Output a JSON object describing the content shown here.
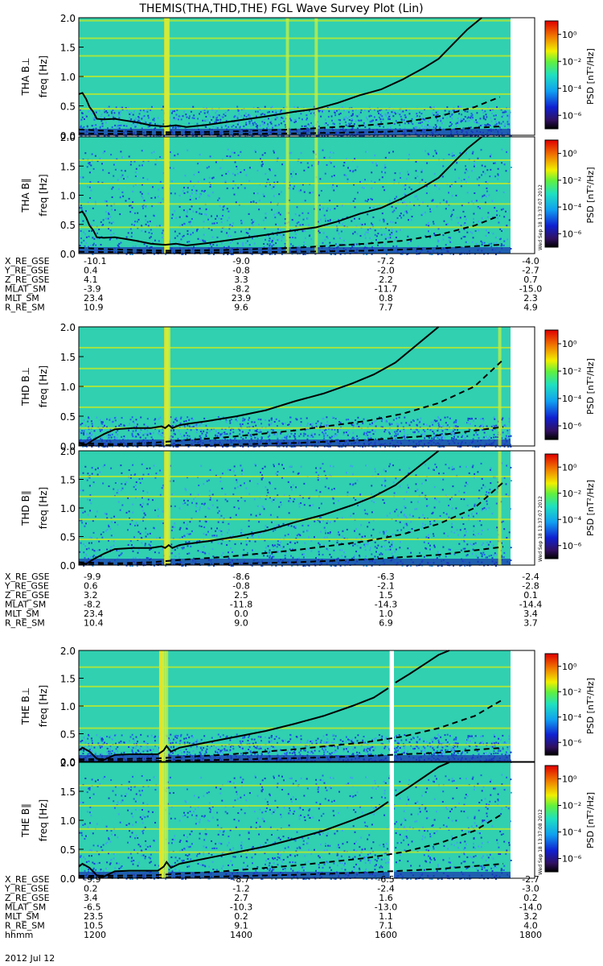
{
  "title": "THEMIS(THA,THD,THE) FGL Wave Survey Plot (Lin)",
  "stamps": [
    "Wed Sep 18 13:37:07 2012",
    "Wed Sep 18 13:37:08 2012"
  ],
  "colorbar": {
    "label": "PSD [nT²/Hz]",
    "ticks": [
      "10⁰",
      "10⁻²",
      "10⁻⁴",
      "10⁻⁶"
    ],
    "tick_values": [
      0,
      -2,
      -4,
      -6
    ],
    "range_log": [
      -7,
      1
    ]
  },
  "colors": {
    "background": "#30d0b0",
    "noise": "#2060e8",
    "band": "#b8e830",
    "spike": "#f0e020",
    "line": "#000000"
  },
  "chart_data": [
    {
      "type": "heatmap",
      "id": "tha_perp",
      "ylabel": [
        "THA B⊥",
        "freq [Hz]"
      ],
      "ylim": [
        0,
        2
      ],
      "yticks": [
        "0.0",
        "0.5",
        "1.0",
        "1.5",
        "2.0"
      ],
      "ytick_values": [
        0,
        0.5,
        1,
        1.5,
        2
      ],
      "gap": null,
      "spike_x": [
        1322,
        1323,
        1490,
        1530
      ],
      "bands": [
        0.45,
        0.7,
        1.0,
        1.35,
        1.65,
        1.95
      ],
      "series": [
        {
          "name": "",
          "style": "solid",
          "x": [
            1200,
            1205,
            1210,
            1215,
            1220,
            1225,
            1235,
            1250,
            1265,
            1280,
            1300,
            1320,
            1335,
            1350,
            1380,
            1420,
            1460,
            1500,
            1530,
            1560,
            1590,
            1620,
            1650,
            1680,
            1700,
            1720,
            1740,
            1760
          ],
          "y": [
            0.7,
            0.72,
            0.62,
            0.48,
            0.4,
            0.28,
            0.27,
            0.28,
            0.25,
            0.22,
            0.17,
            0.15,
            0.17,
            0.14,
            0.18,
            0.25,
            0.32,
            0.4,
            0.45,
            0.55,
            0.68,
            0.78,
            0.95,
            1.15,
            1.3,
            1.55,
            1.8,
            2.0
          ]
        },
        {
          "name": "",
          "style": "dashed",
          "x": [
            1200,
            1230,
            1280,
            1320,
            1400,
            1500,
            1600,
            1650,
            1700,
            1750,
            1785
          ],
          "y": [
            0.1,
            0.08,
            0.06,
            0.05,
            0.06,
            0.1,
            0.17,
            0.22,
            0.32,
            0.48,
            0.65
          ]
        },
        {
          "name": "",
          "style": "dashed",
          "x": [
            1200,
            1300,
            1400,
            1500,
            1600,
            1700,
            1785
          ],
          "y": [
            0.03,
            0.02,
            0.02,
            0.03,
            0.05,
            0.09,
            0.15
          ]
        }
      ]
    },
    {
      "type": "heatmap",
      "id": "tha_par",
      "ylabel": [
        "THA B∥",
        "freq [Hz]"
      ],
      "ylim": [
        0,
        2
      ],
      "yticks": [
        "0.0",
        "0.5",
        "1.0",
        "1.5",
        "2.0"
      ],
      "ytick_values": [
        0,
        0.5,
        1,
        1.5,
        2
      ],
      "gap": null,
      "spike_x": [
        1322,
        1323,
        1490,
        1530
      ],
      "bands": [
        0.45,
        0.85,
        1.2,
        1.6
      ],
      "series": [
        {
          "name": "",
          "style": "solid",
          "x": [
            1200,
            1205,
            1210,
            1215,
            1220,
            1225,
            1235,
            1250,
            1265,
            1280,
            1300,
            1320,
            1335,
            1350,
            1380,
            1420,
            1460,
            1500,
            1530,
            1560,
            1590,
            1620,
            1650,
            1680,
            1700,
            1720,
            1740,
            1760
          ],
          "y": [
            0.7,
            0.72,
            0.62,
            0.48,
            0.4,
            0.28,
            0.27,
            0.28,
            0.25,
            0.22,
            0.17,
            0.15,
            0.17,
            0.14,
            0.18,
            0.25,
            0.32,
            0.4,
            0.45,
            0.55,
            0.68,
            0.78,
            0.95,
            1.15,
            1.3,
            1.55,
            1.8,
            2.0
          ]
        },
        {
          "name": "",
          "style": "dashed",
          "x": [
            1200,
            1230,
            1280,
            1320,
            1400,
            1500,
            1600,
            1650,
            1700,
            1750,
            1785
          ],
          "y": [
            0.1,
            0.08,
            0.06,
            0.05,
            0.06,
            0.1,
            0.17,
            0.22,
            0.32,
            0.48,
            0.65
          ]
        },
        {
          "name": "",
          "style": "dashed",
          "x": [
            1200,
            1300,
            1400,
            1500,
            1600,
            1700,
            1785
          ],
          "y": [
            0.03,
            0.02,
            0.02,
            0.03,
            0.05,
            0.09,
            0.15
          ]
        }
      ]
    },
    {
      "type": "heatmap",
      "id": "thd_perp",
      "ylabel": [
        "THD B⊥",
        "freq [Hz]"
      ],
      "ylim": [
        0,
        2
      ],
      "yticks": [
        "0.0",
        "0.5",
        "1.0",
        "1.5",
        "2.0"
      ],
      "ytick_values": [
        0,
        0.5,
        1,
        1.5,
        2
      ],
      "gap": null,
      "spike_x": [
        1322,
        1324,
        1785
      ],
      "bands": [
        0.3,
        0.65,
        1.0,
        1.3,
        1.65
      ],
      "series": [
        {
          "name": "",
          "style": "solid",
          "x": [
            1200,
            1210,
            1220,
            1235,
            1250,
            1275,
            1300,
            1315,
            1320,
            1325,
            1330,
            1340,
            1350,
            1380,
            1420,
            1460,
            1500,
            1540,
            1580,
            1610,
            1640,
            1660,
            1680,
            1700
          ],
          "y": [
            0.05,
            0.02,
            0.1,
            0.2,
            0.28,
            0.3,
            0.3,
            0.33,
            0.3,
            0.35,
            0.3,
            0.35,
            0.37,
            0.42,
            0.5,
            0.6,
            0.75,
            0.88,
            1.05,
            1.2,
            1.4,
            1.6,
            1.8,
            2.0
          ]
        },
        {
          "name": "",
          "style": "dashed",
          "x": [
            1200,
            1250,
            1300,
            1350,
            1400,
            1450,
            1500,
            1550,
            1600,
            1650,
            1700,
            1750,
            1790
          ],
          "y": [
            0.05,
            0.03,
            0.05,
            0.1,
            0.14,
            0.2,
            0.26,
            0.34,
            0.42,
            0.54,
            0.72,
            1.0,
            1.45
          ]
        },
        {
          "name": "",
          "style": "dashed",
          "x": [
            1200,
            1300,
            1400,
            1500,
            1600,
            1700,
            1790
          ],
          "y": [
            0.01,
            0.01,
            0.02,
            0.05,
            0.1,
            0.18,
            0.32
          ]
        }
      ]
    },
    {
      "type": "heatmap",
      "id": "thd_par",
      "ylabel": [
        "THD B∥",
        "freq [Hz]"
      ],
      "ylim": [
        0,
        2
      ],
      "yticks": [
        "0.0",
        "0.5",
        "1.0",
        "1.5",
        "2.0"
      ],
      "ytick_values": [
        0,
        0.5,
        1,
        1.5,
        2
      ],
      "gap": null,
      "spike_x": [
        1322,
        1324,
        1785
      ],
      "bands": [
        0.45,
        0.8,
        1.2,
        1.55
      ],
      "series": [
        {
          "name": "",
          "style": "solid",
          "x": [
            1200,
            1210,
            1220,
            1235,
            1250,
            1275,
            1300,
            1315,
            1320,
            1325,
            1330,
            1340,
            1350,
            1380,
            1420,
            1460,
            1500,
            1540,
            1580,
            1610,
            1640,
            1660,
            1680,
            1700
          ],
          "y": [
            0.05,
            0.02,
            0.1,
            0.2,
            0.28,
            0.3,
            0.3,
            0.33,
            0.3,
            0.35,
            0.3,
            0.35,
            0.37,
            0.42,
            0.5,
            0.6,
            0.75,
            0.88,
            1.05,
            1.2,
            1.4,
            1.6,
            1.8,
            2.0
          ]
        },
        {
          "name": "",
          "style": "dashed",
          "x": [
            1200,
            1250,
            1300,
            1350,
            1400,
            1450,
            1500,
            1550,
            1600,
            1650,
            1700,
            1750,
            1790
          ],
          "y": [
            0.05,
            0.03,
            0.05,
            0.1,
            0.14,
            0.2,
            0.26,
            0.34,
            0.42,
            0.54,
            0.72,
            1.0,
            1.45
          ]
        },
        {
          "name": "",
          "style": "dashed",
          "x": [
            1200,
            1300,
            1400,
            1500,
            1600,
            1700,
            1790
          ],
          "y": [
            0.01,
            0.01,
            0.02,
            0.05,
            0.1,
            0.18,
            0.32
          ]
        }
      ]
    },
    {
      "type": "heatmap",
      "id": "the_perp",
      "ylabel": [
        "THE B⊥",
        "freq [Hz]"
      ],
      "ylim": [
        0,
        2
      ],
      "yticks": [
        "0.0",
        "0.5",
        "1.0",
        "1.5",
        "2.0"
      ],
      "ytick_values": [
        0,
        0.5,
        1,
        1.5,
        2
      ],
      "gap": [
        1632,
        1638
      ],
      "spike_x": [
        1315,
        1318,
        1322
      ],
      "bands": [
        0.3,
        0.6,
        1.0,
        1.35,
        1.7
      ],
      "series": [
        {
          "name": "",
          "style": "solid",
          "x": [
            1200,
            1205,
            1215,
            1225,
            1235,
            1250,
            1270,
            1290,
            1310,
            1318,
            1322,
            1328,
            1340,
            1380,
            1420,
            1460,
            1500,
            1540,
            1580,
            1610,
            1630
          ],
          "y": [
            0.2,
            0.25,
            0.18,
            0.05,
            0.03,
            0.12,
            0.13,
            0.13,
            0.13,
            0.2,
            0.28,
            0.18,
            0.25,
            0.35,
            0.45,
            0.55,
            0.68,
            0.82,
            1.0,
            1.15,
            1.32
          ]
        },
        {
          "name": "",
          "style": "solid",
          "x": [
            1640,
            1660,
            1680,
            1700,
            1715
          ],
          "y": [
            1.42,
            1.58,
            1.75,
            1.92,
            2.0
          ]
        },
        {
          "name": "",
          "style": "dashed",
          "x": [
            1200,
            1300,
            1400,
            1500,
            1600,
            1650,
            1700,
            1750,
            1790
          ],
          "y": [
            0.04,
            0.05,
            0.12,
            0.22,
            0.35,
            0.45,
            0.6,
            0.82,
            1.12
          ]
        },
        {
          "name": "",
          "style": "dashed",
          "x": [
            1200,
            1300,
            1400,
            1500,
            1600,
            1700,
            1790
          ],
          "y": [
            0.01,
            0.01,
            0.03,
            0.06,
            0.1,
            0.16,
            0.25
          ]
        }
      ]
    },
    {
      "type": "heatmap",
      "id": "the_par",
      "ylabel": [
        "THE B∥",
        "freq [Hz]"
      ],
      "ylim": [
        0,
        2
      ],
      "yticks": [
        "0.0",
        "0.5",
        "1.0",
        "1.5",
        "2.0"
      ],
      "ytick_values": [
        0,
        0.5,
        1,
        1.5,
        2
      ],
      "gap": [
        1632,
        1638
      ],
      "spike_x": [
        1315,
        1318,
        1322
      ],
      "bands": [
        0.45,
        0.85,
        1.25,
        1.6
      ],
      "series": [
        {
          "name": "",
          "style": "solid",
          "x": [
            1200,
            1205,
            1215,
            1225,
            1235,
            1250,
            1270,
            1290,
            1310,
            1318,
            1322,
            1328,
            1340,
            1380,
            1420,
            1460,
            1500,
            1540,
            1580,
            1610,
            1630
          ],
          "y": [
            0.2,
            0.25,
            0.18,
            0.05,
            0.03,
            0.12,
            0.13,
            0.13,
            0.13,
            0.2,
            0.28,
            0.18,
            0.25,
            0.35,
            0.45,
            0.55,
            0.68,
            0.82,
            1.0,
            1.15,
            1.32
          ]
        },
        {
          "name": "",
          "style": "solid",
          "x": [
            1640,
            1660,
            1680,
            1700,
            1715
          ],
          "y": [
            1.42,
            1.58,
            1.75,
            1.92,
            2.0
          ]
        },
        {
          "name": "",
          "style": "dashed",
          "x": [
            1200,
            1300,
            1400,
            1500,
            1600,
            1650,
            1700,
            1750,
            1790
          ],
          "y": [
            0.04,
            0.05,
            0.12,
            0.22,
            0.35,
            0.45,
            0.6,
            0.82,
            1.12
          ]
        },
        {
          "name": "",
          "style": "dashed",
          "x": [
            1200,
            1300,
            1400,
            1500,
            1600,
            1700,
            1790
          ],
          "y": [
            0.01,
            0.01,
            0.03,
            0.06,
            0.1,
            0.16,
            0.25
          ]
        }
      ]
    }
  ],
  "x_axis": {
    "xlim": [
      1200,
      1800
    ],
    "tick_values": [
      1200,
      1400,
      1600,
      1800
    ]
  },
  "orbit_tables": [
    {
      "labels": [
        "X_RE_GSE",
        "Y_RE_GSE",
        "Z_RE_GSE",
        "MLAT_SM",
        "MLT_SM",
        "R_RE_SM"
      ],
      "columns": [
        [
          "-10.1",
          "0.4",
          "4.1",
          "-3.9",
          "23.4",
          "10.9"
        ],
        [
          "-9.0",
          "-0.8",
          "3.3",
          "-8.2",
          "23.9",
          "9.6"
        ],
        [
          "-7.2",
          "-2.0",
          "2.2",
          "-11.7",
          "0.8",
          "7.7"
        ],
        [
          "-4.0",
          "-2.7",
          "0.7",
          "-15.0",
          "2.3",
          "4.9"
        ]
      ]
    },
    {
      "labels": [
        "X_RE_GSE",
        "Y_RE_GSE",
        "Z_RE_GSE",
        "MLAT_SM",
        "MLT_SM",
        "R_RE_SM"
      ],
      "columns": [
        [
          "-9.9",
          "0.6",
          "3.2",
          "-8.2",
          "23.4",
          "10.4"
        ],
        [
          "-8.6",
          "-0.8",
          "2.5",
          "-11.8",
          "0.0",
          "9.0"
        ],
        [
          "-6.3",
          "-2.1",
          "1.5",
          "-14.3",
          "1.0",
          "6.9"
        ],
        [
          "-2.4",
          "-2.8",
          "0.1",
          "-14.4",
          "3.4",
          "3.7"
        ]
      ]
    },
    {
      "labels": [
        "X_RE_GSE",
        "Y_RE_GSE",
        "Z_RE_GSE",
        "MLAT_SM",
        "MLT_SM",
        "R_RE_SM",
        "hhmm"
      ],
      "columns": [
        [
          "-9.9",
          "0.2",
          "3.4",
          "-6.5",
          "23.5",
          "10.5",
          "1200"
        ],
        [
          "-8.7",
          "-1.2",
          "2.7",
          "-10.3",
          "0.2",
          "9.1",
          "1400"
        ],
        [
          "-6.5",
          "-2.4",
          "1.6",
          "-13.0",
          "1.1",
          "7.1",
          "1600"
        ],
        [
          "-2.7",
          "-3.0",
          "0.2",
          "-14.0",
          "3.2",
          "4.0",
          "1800"
        ]
      ]
    }
  ],
  "date_label": "2012 Jul 12"
}
